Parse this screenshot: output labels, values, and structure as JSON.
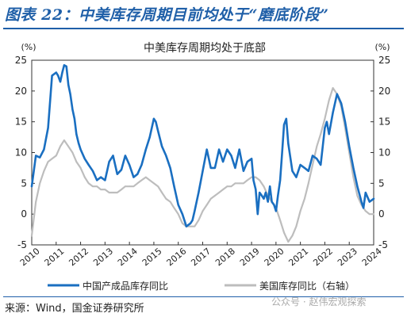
{
  "figure": {
    "title": "图表 22：中美库存周期目前均处于“磨底阶段”",
    "source": "来源：Wind，国金证券研究所",
    "watermark": "公众号 · 赵伟宏观探索"
  },
  "colors": {
    "primary": "#1a6fc1",
    "secondary": "#bdbdbd",
    "title": "#1f5fa8"
  },
  "chart_data": {
    "type": "line",
    "title": "中美库存周期均处于底部",
    "left_unit": "(%)",
    "right_unit": "(%)",
    "ylim_left": [
      -5,
      25
    ],
    "ylim_right": [
      -5,
      25
    ],
    "yticks_left": [
      -5,
      0,
      5,
      10,
      15,
      20,
      25
    ],
    "yticks_right": [
      -5,
      0,
      5,
      10,
      15,
      20,
      25
    ],
    "xlim": [
      2010,
      2024
    ],
    "xticks": [
      "2010",
      "2011",
      "2012",
      "2013",
      "2014",
      "2015",
      "2016",
      "2017",
      "2018",
      "2019",
      "2020",
      "2021",
      "2022",
      "2023",
      "2024"
    ],
    "grid": false,
    "legend_position": "bottom",
    "series": [
      {
        "name": "中国产成品库存同比",
        "axis": "left",
        "color": "#1a6fc1",
        "x": [
          2010.0,
          2010.17,
          2010.33,
          2010.5,
          2010.67,
          2010.83,
          2011.0,
          2011.08,
          2011.17,
          2011.25,
          2011.33,
          2011.42,
          2011.5,
          2011.58,
          2011.67,
          2011.75,
          2011.83,
          2011.92,
          2012.0,
          2012.17,
          2012.33,
          2012.5,
          2012.67,
          2012.83,
          2013.0,
          2013.17,
          2013.33,
          2013.5,
          2013.67,
          2013.83,
          2014.0,
          2014.17,
          2014.33,
          2014.5,
          2014.67,
          2014.83,
          2015.0,
          2015.08,
          2015.17,
          2015.33,
          2015.5,
          2015.67,
          2015.83,
          2016.0,
          2016.17,
          2016.33,
          2016.5,
          2016.58,
          2016.67,
          2016.83,
          2017.0,
          2017.17,
          2017.33,
          2017.5,
          2017.67,
          2017.83,
          2018.0,
          2018.17,
          2018.33,
          2018.5,
          2018.67,
          2018.83,
          2019.0,
          2019.08,
          2019.17,
          2019.25,
          2019.33,
          2019.42,
          2019.5,
          2019.58,
          2019.67,
          2019.75,
          2019.83,
          2019.92,
          2020.0,
          2020.08,
          2020.17,
          2020.25,
          2020.33,
          2020.42,
          2020.5,
          2020.67,
          2020.83,
          2021.0,
          2021.17,
          2021.33,
          2021.5,
          2021.67,
          2021.83,
          2022.0,
          2022.08,
          2022.17,
          2022.33,
          2022.5,
          2022.67,
          2022.83,
          2023.0,
          2023.17,
          2023.33,
          2023.5,
          2023.58,
          2023.67,
          2023.83,
          2024.0
        ],
        "values": [
          4.5,
          9.5,
          9.2,
          10.5,
          14.0,
          22.5,
          23.0,
          22.5,
          21.5,
          23.0,
          24.2,
          24.0,
          21.0,
          19.5,
          17.0,
          15.5,
          13.0,
          11.5,
          10.5,
          9.0,
          8.0,
          7.0,
          5.5,
          6.0,
          5.5,
          8.5,
          9.5,
          6.5,
          7.2,
          9.5,
          8.0,
          6.0,
          6.5,
          8.0,
          10.5,
          12.5,
          15.5,
          15.0,
          13.5,
          11.0,
          9.5,
          7.5,
          4.5,
          1.5,
          0.0,
          -2.0,
          -1.5,
          -1.0,
          0.5,
          3.5,
          7.0,
          10.5,
          7.5,
          7.5,
          10.5,
          8.5,
          10.5,
          9.5,
          7.5,
          10.5,
          7.0,
          8.5,
          9.0,
          5.5,
          4.0,
          0.0,
          3.5,
          3.0,
          2.5,
          3.5,
          2.0,
          4.5,
          2.0,
          1.5,
          0.5,
          3.0,
          5.5,
          10.0,
          14.5,
          15.5,
          11.5,
          7.0,
          6.0,
          8.0,
          7.5,
          7.0,
          9.5,
          9.0,
          8.0,
          14.0,
          15.0,
          13.0,
          16.5,
          19.5,
          18.0,
          15.0,
          11.0,
          7.5,
          4.5,
          2.0,
          1.0,
          3.5,
          2.0,
          2.5
        ]
      },
      {
        "name": "美国库存同比（右轴）",
        "axis": "right",
        "color": "#bdbdbd",
        "x": [
          2010.0,
          2010.17,
          2010.33,
          2010.5,
          2010.67,
          2010.83,
          2011.0,
          2011.17,
          2011.33,
          2011.5,
          2011.67,
          2011.83,
          2012.0,
          2012.17,
          2012.33,
          2012.5,
          2012.67,
          2012.83,
          2013.0,
          2013.17,
          2013.33,
          2013.5,
          2013.67,
          2013.83,
          2014.0,
          2014.17,
          2014.33,
          2014.5,
          2014.67,
          2014.83,
          2015.0,
          2015.17,
          2015.33,
          2015.5,
          2015.67,
          2015.83,
          2016.0,
          2016.17,
          2016.33,
          2016.5,
          2016.67,
          2016.83,
          2017.0,
          2017.17,
          2017.33,
          2017.5,
          2017.67,
          2017.83,
          2018.0,
          2018.17,
          2018.33,
          2018.5,
          2018.67,
          2018.83,
          2019.0,
          2019.17,
          2019.33,
          2019.5,
          2019.67,
          2019.83,
          2020.0,
          2020.17,
          2020.33,
          2020.5,
          2020.67,
          2020.83,
          2021.0,
          2021.17,
          2021.33,
          2021.5,
          2021.67,
          2021.83,
          2022.0,
          2022.17,
          2022.33,
          2022.5,
          2022.67,
          2022.83,
          2023.0,
          2023.17,
          2023.33,
          2023.5,
          2023.67,
          2023.83,
          2024.0
        ],
        "values": [
          -3.5,
          2.0,
          5.0,
          7.0,
          8.5,
          9.0,
          9.5,
          11.0,
          12.0,
          11.0,
          10.0,
          8.5,
          7.5,
          6.0,
          5.0,
          4.5,
          4.5,
          4.0,
          4.0,
          3.5,
          3.5,
          3.5,
          4.0,
          4.5,
          4.5,
          4.5,
          5.0,
          5.5,
          6.0,
          5.5,
          5.0,
          4.5,
          3.5,
          2.5,
          2.0,
          1.0,
          0.0,
          -1.5,
          -2.0,
          -2.0,
          -2.0,
          -1.0,
          0.5,
          1.5,
          2.5,
          3.0,
          3.5,
          4.0,
          4.5,
          4.5,
          5.0,
          5.0,
          5.0,
          5.5,
          6.0,
          6.0,
          5.5,
          4.5,
          3.0,
          2.0,
          1.0,
          -1.0,
          -3.0,
          -4.5,
          -3.5,
          -2.0,
          0.5,
          2.5,
          5.0,
          8.0,
          11.0,
          13.0,
          15.5,
          18.5,
          20.5,
          19.5,
          17.5,
          14.0,
          10.0,
          6.0,
          3.0,
          1.5,
          0.5,
          0.0,
          0.0
        ]
      }
    ]
  }
}
